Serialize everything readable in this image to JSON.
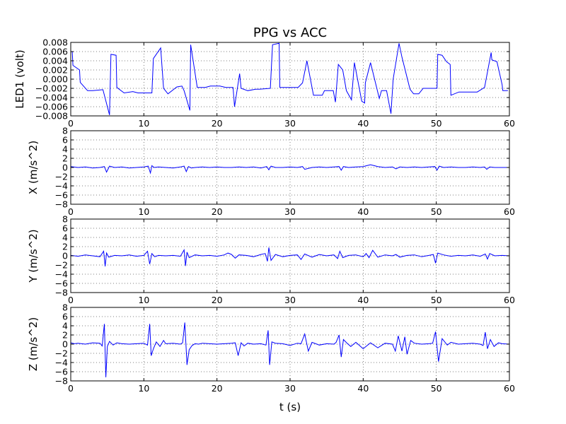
{
  "chart_data": {
    "title": "PPG vs ACC",
    "xlabel": "t (s)",
    "xlim": [
      0,
      60
    ],
    "xticks": [
      0,
      10,
      20,
      30,
      40,
      50,
      60
    ],
    "xtick_labels": [
      "0",
      "10",
      "20",
      "30",
      "40",
      "50",
      "60"
    ],
    "grid": true,
    "line_color": "#0000ff",
    "panels": [
      {
        "type": "line",
        "name": "LED1",
        "ylabel": "LED1 (volt)",
        "ylim": [
          -0.008,
          0.008
        ],
        "yticks": [
          0.008,
          0.006,
          0.004,
          0.002,
          0.0,
          -0.002,
          -0.004,
          -0.006,
          -0.008
        ],
        "ytick_labels": [
          "0.008",
          "0.006",
          "0.004",
          "0.002",
          "0.000",
          "−0.002",
          "−0.004",
          "−0.006",
          "−0.008"
        ],
        "x": [
          0.2,
          0.3,
          0.3,
          1.2,
          1.3,
          2.3,
          3.0,
          4.4,
          5.3,
          5.5,
          6.2,
          6.3,
          7.3,
          8.5,
          9.2,
          10.2,
          11.1,
          11.3,
          12.3,
          12.7,
          13.3,
          14.5,
          15.2,
          15.5,
          16.3,
          16.4,
          17.3,
          18.4,
          19.1,
          20.4,
          21.2,
          22.2,
          22.4,
          23.1,
          23.3,
          24.2,
          25.3,
          25.8,
          27.3,
          27.6,
          28.5,
          28.6,
          29.2,
          30.2,
          31.1,
          31.7,
          32.3,
          33.2,
          34.4,
          34.7,
          35.9,
          36.2,
          36.6,
          37.2,
          37.7,
          38.4,
          38.8,
          39.8,
          40.2,
          40.3,
          41.0,
          42.2,
          42.5,
          43.2,
          43.8,
          44.1,
          44.9,
          45.3,
          46.4,
          46.9,
          47.6,
          48.2,
          48.6,
          49.2,
          50.1,
          50.2,
          50.8,
          51.4,
          51.9,
          52.0,
          53.1,
          54.3,
          55.6,
          56.6,
          57.5,
          57.6,
          58.3,
          59.0,
          59.1,
          59.8
        ],
        "y": [
          0.006,
          0.003,
          0.003,
          0.002,
          -0.0007,
          -0.0025,
          -0.0025,
          -0.0023,
          -0.0078,
          0.0054,
          0.0052,
          -0.0018,
          -0.003,
          -0.0027,
          -0.003,
          -0.003,
          -0.003,
          0.0045,
          0.0068,
          -0.002,
          -0.0032,
          -0.0017,
          -0.0015,
          -0.0025,
          -0.0068,
          0.0075,
          -0.0018,
          -0.0018,
          -0.0015,
          -0.0015,
          -0.0018,
          -0.0018,
          -0.006,
          0.0012,
          -0.002,
          -0.0025,
          -0.0022,
          -0.0022,
          -0.002,
          0.0075,
          0.0078,
          -0.0018,
          -0.0018,
          -0.0018,
          -0.0018,
          -0.0008,
          0.004,
          -0.0035,
          -0.0035,
          -0.0025,
          -0.0025,
          -0.005,
          0.0032,
          0.002,
          -0.0025,
          -0.0045,
          0.0036,
          -0.0048,
          -0.0052,
          -0.0008,
          0.0036,
          -0.0042,
          -0.0025,
          -0.0025,
          -0.0075,
          0.0,
          0.0078,
          0.0048,
          -0.0022,
          -0.0032,
          -0.0032,
          -0.002,
          -0.002,
          -0.002,
          -0.002,
          0.0054,
          0.0052,
          0.0038,
          0.0032,
          -0.0035,
          -0.0028,
          -0.0028,
          -0.0028,
          -0.0018,
          0.0058,
          0.0042,
          0.0038,
          -0.0012,
          -0.0025,
          -0.0025
        ]
      },
      {
        "type": "line",
        "name": "X",
        "ylabel": "X (m/s^2)",
        "ylim": [
          -8,
          8
        ],
        "yticks": [
          8,
          6,
          4,
          2,
          0,
          -2,
          -4,
          -6,
          -8
        ],
        "ytick_labels": [
          "8",
          "6",
          "4",
          "2",
          "0",
          "−2",
          "−4",
          "−6",
          "−8"
        ],
        "x": [
          0,
          1,
          2,
          3,
          4,
          4.6,
          4.9,
          5.3,
          6,
          7,
          8,
          9,
          10,
          10.6,
          10.9,
          11.1,
          11.4,
          12,
          13,
          14,
          15,
          15.5,
          15.8,
          16.1,
          16.5,
          17,
          18,
          19,
          20,
          21,
          22,
          23,
          24,
          25,
          26,
          26.8,
          27.1,
          27.4,
          28,
          29,
          30,
          31,
          31.7,
          32,
          33,
          34,
          35,
          36,
          36.7,
          37,
          37.3,
          38,
          39,
          40,
          40.5,
          41,
          41.5,
          42,
          43,
          44,
          44.5,
          45,
          46,
          47,
          48,
          49,
          49.8,
          50.1,
          50.4,
          51,
          52,
          53,
          54,
          55,
          56,
          56.6,
          56.9,
          57.3,
          58,
          59,
          60
        ],
        "y": [
          0.2,
          0,
          0.1,
          -0.1,
          0,
          0.2,
          -1.0,
          0.3,
          0,
          0.1,
          -0.1,
          0,
          0.1,
          0.3,
          -1.2,
          0.4,
          0,
          0.1,
          0,
          -0.1,
          0.1,
          0.3,
          -0.9,
          0.2,
          -0.1,
          0,
          0.1,
          0,
          0.1,
          0,
          0,
          0.1,
          0,
          0.1,
          -0.1,
          0.2,
          -0.5,
          0.3,
          0,
          0,
          0.1,
          0,
          0.2,
          -0.4,
          0,
          0.1,
          0,
          0.1,
          0.2,
          -0.6,
          0.2,
          0,
          0.1,
          0.2,
          0.4,
          0.6,
          0.4,
          0.2,
          0,
          0.1,
          -0.3,
          0.1,
          0,
          0.1,
          0,
          0.1,
          0.2,
          -0.6,
          0.3,
          0,
          0.1,
          0,
          0,
          0.1,
          0,
          0.1,
          -0.4,
          0.1,
          0,
          0,
          0
        ]
      },
      {
        "type": "line",
        "name": "Y",
        "ylabel": "Y (m/s^2)",
        "ylim": [
          -8,
          8
        ],
        "yticks": [
          8,
          6,
          4,
          2,
          0,
          -2,
          -4,
          -6,
          -8
        ],
        "ytick_labels": [
          "8",
          "6",
          "4",
          "2",
          "0",
          "−2",
          "−4",
          "−6",
          "−8"
        ],
        "x": [
          0,
          1,
          2,
          3,
          4,
          4.5,
          4.7,
          4.9,
          5.2,
          6,
          7,
          8,
          9,
          10,
          10.5,
          10.8,
          11.1,
          11.5,
          12,
          13,
          14,
          15,
          15.5,
          15.7,
          15.9,
          16.2,
          17,
          18,
          19,
          20,
          21,
          21.5,
          22,
          22.5,
          23,
          24,
          25,
          26,
          26.6,
          26.9,
          27.1,
          27.4,
          28,
          29,
          30,
          31,
          31.5,
          32,
          33,
          34,
          35,
          36,
          36.5,
          36.8,
          37.2,
          38,
          39,
          40,
          40.4,
          40.8,
          41.3,
          42,
          43,
          44,
          44.5,
          45,
          46,
          47,
          48,
          49,
          49.6,
          49.9,
          50.2,
          51,
          52,
          53,
          54,
          55,
          56,
          56.7,
          57,
          57.3,
          58,
          59,
          60
        ],
        "y": [
          0.1,
          -0.1,
          0.2,
          0,
          -0.2,
          1.0,
          -2.3,
          0.6,
          -0.3,
          0.1,
          0,
          0.2,
          -0.1,
          0.1,
          1.0,
          -1.8,
          0.5,
          -0.2,
          0.1,
          0,
          0.1,
          -0.1,
          1.3,
          -2.2,
          0.8,
          -0.4,
          0.2,
          0,
          0.1,
          -0.1,
          0.2,
          0.6,
          0.3,
          -0.5,
          0.2,
          0.1,
          -0.2,
          0.3,
          0.5,
          -1.2,
          1.8,
          -1.0,
          0.3,
          -0.2,
          0.1,
          0.2,
          -0.8,
          0.4,
          -0.3,
          0.3,
          0,
          0.2,
          -0.6,
          1.0,
          -0.4,
          0.1,
          0.2,
          -0.2,
          0.5,
          -0.4,
          1.2,
          -0.3,
          0.2,
          0,
          0.3,
          -0.3,
          0.1,
          0.2,
          -0.2,
          0.1,
          0.3,
          -1.6,
          0.6,
          0.2,
          -0.1,
          0.1,
          0,
          0.2,
          -0.1,
          0.4,
          -0.7,
          0.5,
          0,
          0.1,
          0
        ]
      },
      {
        "type": "line",
        "name": "Z",
        "ylabel": "Z (m/s^2)",
        "ylim": [
          -8,
          8
        ],
        "yticks": [
          8,
          6,
          4,
          2,
          0,
          -2,
          -4,
          -6,
          -8
        ],
        "ytick_labels": [
          "8",
          "6",
          "4",
          "2",
          "0",
          "−2",
          "−4",
          "−6",
          "−8"
        ],
        "x": [
          0,
          0.5,
          1,
          2,
          3,
          4,
          4.3,
          4.6,
          4.8,
          5.0,
          5.3,
          5.8,
          6.3,
          7,
          8,
          9,
          10,
          10.5,
          10.8,
          11.0,
          11.3,
          11.7,
          12.2,
          12.7,
          13,
          14,
          15,
          15.3,
          15.6,
          15.9,
          16.2,
          16.6,
          17.0,
          17.5,
          18,
          19,
          20,
          21,
          22,
          22.5,
          22.9,
          23.3,
          23.7,
          24.2,
          25,
          26,
          26.7,
          27.0,
          27.2,
          27.5,
          28,
          29,
          30,
          31,
          31.5,
          32,
          32.5,
          33,
          34,
          35,
          36,
          36.3,
          36.7,
          37.0,
          37.3,
          37.8,
          38.3,
          39,
          40,
          41,
          42,
          43,
          44,
          44.4,
          44.8,
          45.3,
          45.7,
          46.0,
          46.5,
          47,
          48,
          49,
          49.5,
          49.9,
          50.3,
          50.8,
          51.5,
          52,
          53,
          54,
          55,
          56,
          56.4,
          56.7,
          57.0,
          57.4,
          57.9,
          58.5,
          59,
          60
        ],
        "y": [
          0.3,
          0.1,
          0.2,
          0,
          0.3,
          0.2,
          -0.4,
          4.4,
          -7.2,
          -0.5,
          0.6,
          -0.2,
          0.3,
          0.1,
          0,
          0.1,
          0.2,
          -0.2,
          4.4,
          -2.5,
          -1.0,
          0.5,
          -0.5,
          0.8,
          0.1,
          0.2,
          0,
          0.3,
          4.7,
          -4.5,
          -1.2,
          -0.3,
          0.1,
          0,
          0.2,
          0.1,
          0,
          0.1,
          0.2,
          0.3,
          -2.5,
          0.3,
          -0.4,
          0.2,
          0,
          0.1,
          -0.2,
          3.0,
          -4.5,
          0.5,
          0.2,
          0.1,
          -0.3,
          0.2,
          0.1,
          2.2,
          -1.5,
          0.4,
          -0.2,
          0.1,
          0,
          0.4,
          2.0,
          -2.8,
          1.0,
          0.2,
          -0.5,
          0.4,
          -1.0,
          0.3,
          -0.8,
          0.2,
          0,
          -1.5,
          1.8,
          -1.5,
          1.6,
          -2.2,
          0.8,
          0.2,
          0,
          0.1,
          0.2,
          2.7,
          -3.8,
          1.2,
          -0.2,
          0.4,
          0,
          0.1,
          0.2,
          0,
          -0.3,
          2.6,
          -1.0,
          1.0,
          -0.5,
          0.3,
          0.1,
          0
        ]
      }
    ]
  }
}
